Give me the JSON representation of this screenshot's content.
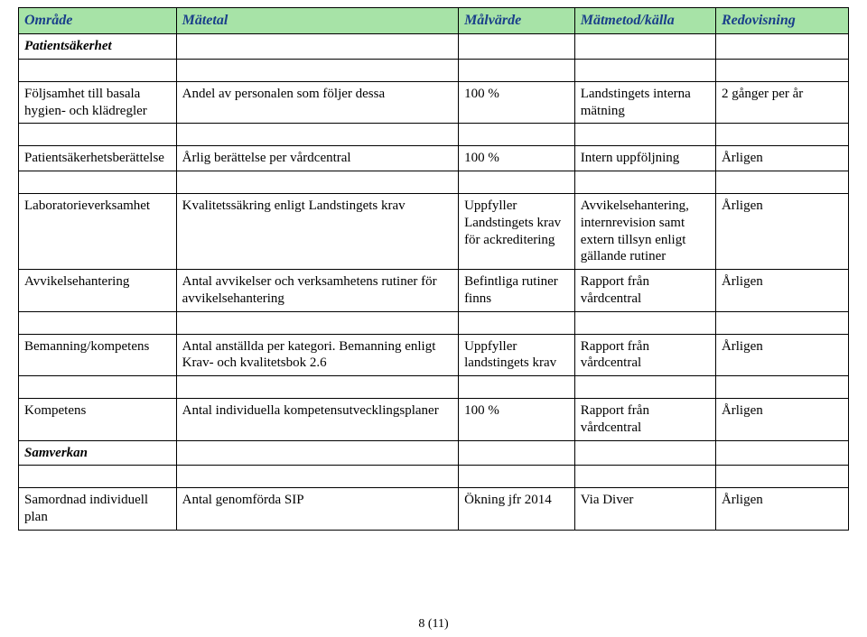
{
  "columns": {
    "widths": [
      "19%",
      "34%",
      "14%",
      "17%",
      "16%"
    ],
    "headers": [
      "Område",
      "Mätetal",
      "Målvärde",
      "Mätmetod/källa",
      "Redovisning"
    ]
  },
  "colors": {
    "header_bg": "#a7e3a7",
    "header_text": "#1a3f8a",
    "border": "#000000",
    "page_bg": "#ffffff"
  },
  "sections": {
    "patientsakerhet": "Patientsäkerhet",
    "samverkan": "Samverkan"
  },
  "rows": {
    "r1": {
      "omrade": "Följsamhet till basala hygien- och klädregler",
      "matetal": "Andel av personalen som följer dessa",
      "malvarde": "100 %",
      "matmetod": "Landstingets interna mätning",
      "redov": "2 gånger per år"
    },
    "r2": {
      "omrade": "Patientsäkerhetsberättelse",
      "matetal": "Årlig berättelse per vårdcentral",
      "malvarde": "100 %",
      "matmetod": "Intern uppföljning",
      "redov": "Årligen"
    },
    "r3": {
      "omrade": "Laboratorieverksamhet",
      "matetal": "Kvalitetssäkring\nenligt Landstingets krav",
      "malvarde": "Uppfyller Landstingets krav för ackreditering",
      "matmetod": "Avvikelsehantering, internrevision samt extern tillsyn enligt gällande rutiner",
      "redov": "Årligen"
    },
    "r4": {
      "omrade": "Avvikelsehantering",
      "matetal": "Antal avvikelser och verksamhetens rutiner för avvikelsehantering",
      "malvarde": "Befintliga rutiner finns",
      "matmetod": "Rapport från vårdcentral",
      "redov": "Årligen"
    },
    "r5": {
      "omrade": "Bemanning/kompetens",
      "matetal": "Antal anställda per kategori.\nBemanning enligt Krav- och kvalitetsbok 2.6",
      "malvarde": "Uppfyller landstingets krav",
      "matmetod": "Rapport från vårdcentral",
      "redov": "Årligen"
    },
    "r6": {
      "omrade": "Kompetens",
      "matetal": "Antal individuella kompetensutvecklingsplaner",
      "malvarde": "100 %",
      "matmetod": "Rapport från vårdcentral",
      "redov": "Årligen"
    },
    "r7": {
      "omrade": "Samordnad individuell plan",
      "matetal": "Antal genomförda SIP",
      "malvarde": "Ökning jfr 2014",
      "matmetod": "Via Diver",
      "redov": "Årligen"
    }
  },
  "footer": "8 (11)"
}
